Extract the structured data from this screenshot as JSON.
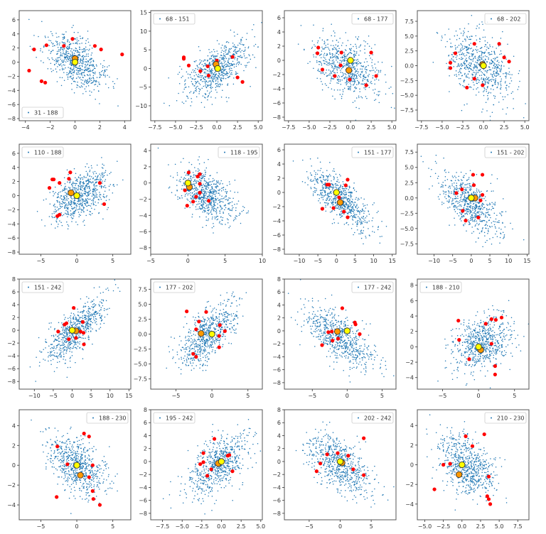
{
  "chart_data": [
    {
      "type": "scatter",
      "legend": "31 - 188",
      "legend_position": "lower-left",
      "xlim": [
        -4.5,
        4.5
      ],
      "ylim": [
        -8.3,
        7.3
      ],
      "xticks": [
        -4,
        -2,
        0,
        2,
        4
      ],
      "yticks": [
        -8,
        -6,
        -4,
        -2,
        0,
        2,
        4,
        6
      ],
      "cloud": {
        "center": [
          0,
          0
        ],
        "sd": [
          1.2,
          2.0
        ],
        "correlation": -0.5
      },
      "red_points": [
        [
          -3.3,
          1.8
        ],
        [
          -2.3,
          2.4
        ],
        [
          -0.9,
          2.3
        ],
        [
          -0.2,
          3.3
        ],
        [
          1.6,
          2.3
        ],
        [
          2.1,
          1.8
        ],
        [
          3.8,
          1.1
        ],
        [
          -3.7,
          -1.2
        ],
        [
          -2.7,
          -2.7
        ],
        [
          -2.4,
          -2.9
        ]
      ],
      "orange_point": [
        0,
        0.5
      ],
      "yellow_point": [
        0,
        0
      ]
    },
    {
      "type": "scatter",
      "legend": "68 - 151",
      "legend_position": "upper-left",
      "xlim": [
        -8,
        5.5
      ],
      "ylim": [
        -14,
        15.5
      ],
      "xticks": [
        -7.5,
        -5.0,
        -2.5,
        0.0,
        2.5,
        5.0
      ],
      "yticks": [
        -10,
        -5,
        0,
        5,
        10,
        15
      ],
      "cloud": {
        "center": [
          0,
          0
        ],
        "sd": [
          2.0,
          4.0
        ],
        "correlation": 0.6
      },
      "red_points": [
        [
          -4,
          3
        ],
        [
          -4,
          2.6
        ],
        [
          -3.4,
          0.8
        ],
        [
          -2,
          -0.7
        ],
        [
          -1.1,
          0.6
        ],
        [
          -1,
          -1.9
        ],
        [
          0,
          2.1
        ],
        [
          1.9,
          3.1
        ],
        [
          2.5,
          -2.4
        ],
        [
          3.1,
          -3.6
        ]
      ],
      "orange_point": [
        -0.1,
        1.1
      ],
      "yellow_point": [
        0.1,
        0
      ]
    },
    {
      "type": "scatter",
      "legend": "68 - 177",
      "legend_position": "upper-right",
      "xlim": [
        -8,
        5.5
      ],
      "ylim": [
        -8.5,
        7
      ],
      "xticks": [
        -7.5,
        -5.0,
        -2.5,
        0.0,
        2.5,
        5.0
      ],
      "yticks": [
        -8,
        -6,
        -4,
        -2,
        0,
        2,
        4,
        6
      ],
      "cloud": {
        "center": [
          -0.5,
          -1
        ],
        "sd": [
          2.0,
          2.2
        ],
        "correlation": -0.45
      },
      "red_points": [
        [
          -3.9,
          1.8
        ],
        [
          -4,
          1
        ],
        [
          -3.4,
          -1.3
        ],
        [
          -1.9,
          -2.2
        ],
        [
          -1.2,
          -0.7
        ],
        [
          -1.1,
          1.1
        ],
        [
          -0.1,
          -2.7
        ],
        [
          1.9,
          -3.5
        ],
        [
          2.5,
          1.1
        ],
        [
          3.1,
          -2.2
        ]
      ],
      "orange_point": [
        -0.2,
        -1.4
      ],
      "yellow_point": [
        0,
        0
      ]
    },
    {
      "type": "scatter",
      "legend": "68 - 202",
      "legend_position": "upper-right",
      "xlim": [
        -8,
        5.5
      ],
      "ylim": [
        -9.3,
        9.3
      ],
      "xticks": [
        -7.5,
        -5.0,
        -2.5,
        0.0,
        2.5,
        5.0
      ],
      "yticks": [
        -7.5,
        -5.0,
        -2.5,
        0.0,
        2.5,
        5.0,
        7.5
      ],
      "cloud": {
        "center": [
          -0.5,
          0
        ],
        "sd": [
          2.0,
          2.8
        ],
        "correlation": -0.4
      },
      "red_points": [
        [
          -3.4,
          2.1
        ],
        [
          -4,
          0.5
        ],
        [
          -4,
          -0.4
        ],
        [
          -2,
          -3.7
        ],
        [
          -1.1,
          3.7
        ],
        [
          -1.1,
          -2.2
        ],
        [
          -0.1,
          -3.3
        ],
        [
          1.9,
          3.7
        ],
        [
          2.5,
          1.4
        ],
        [
          3.1,
          0.7
        ]
      ],
      "orange_point": [
        -0.1,
        0.2
      ],
      "yellow_point": [
        0,
        0
      ]
    },
    {
      "type": "scatter",
      "legend": "110 - 188",
      "legend_position": "upper-left",
      "xlim": [
        -8,
        7.5
      ],
      "ylim": [
        -8.3,
        7.3
      ],
      "xticks": [
        -5,
        0,
        5
      ],
      "yticks": [
        -8,
        -6,
        -4,
        -2,
        0,
        2,
        4,
        6
      ],
      "cloud": {
        "center": [
          0.5,
          0
        ],
        "sd": [
          2.0,
          1.8
        ],
        "correlation": 0.45
      },
      "red_points": [
        [
          -3.8,
          1.1
        ],
        [
          -3.4,
          2.3
        ],
        [
          -3.2,
          2.3
        ],
        [
          -2.4,
          1.8
        ],
        [
          -1.1,
          2.4
        ],
        [
          -0.9,
          3.3
        ],
        [
          3.2,
          1.8
        ],
        [
          3.8,
          -1.2
        ],
        [
          -2.7,
          -2.9
        ],
        [
          -2.4,
          -2.7
        ]
      ],
      "orange_point": [
        -0.8,
        0.4
      ],
      "yellow_point": [
        0,
        0
      ]
    },
    {
      "type": "scatter",
      "legend": "118 - 195",
      "legend_position": "upper-right",
      "xlim": [
        -5,
        10
      ],
      "ylim": [
        -8.8,
        4.8
      ],
      "xticks": [
        -5,
        0,
        5,
        10
      ],
      "yticks": [
        -8,
        -6,
        -4,
        -2,
        0,
        2,
        4
      ],
      "cloud": {
        "center": [
          2.5,
          -1.5
        ],
        "sd": [
          2.0,
          1.6
        ],
        "correlation": -0.5
      },
      "red_points": [
        [
          0.1,
          1.3
        ],
        [
          1.3,
          0.8
        ],
        [
          1.6,
          1.1
        ],
        [
          1.6,
          -0.1
        ],
        [
          1.6,
          -1.2
        ],
        [
          1.1,
          -1.7
        ],
        [
          -0.4,
          -0.9
        ],
        [
          0.7,
          -2.3
        ],
        [
          2.8,
          -2.2
        ],
        [
          -0.1,
          -2.8
        ]
      ],
      "orange_point": [
        0.2,
        -0.5
      ],
      "yellow_point": [
        0,
        0
      ]
    },
    {
      "type": "scatter",
      "legend": "151 - 177",
      "legend_position": "upper-right",
      "xlim": [
        -14,
        16
      ],
      "ylim": [
        -8.7,
        6.8
      ],
      "xticks": [
        -10,
        -5,
        0,
        5,
        10,
        15
      ],
      "yticks": [
        -8,
        -6,
        -4,
        -2,
        0,
        2,
        4,
        6
      ],
      "cloud": {
        "center": [
          1,
          -1
        ],
        "sd": [
          4.0,
          2.0
        ],
        "correlation": -0.7
      },
      "red_points": [
        [
          -2.5,
          1.1
        ],
        [
          -2,
          1.1
        ],
        [
          2.5,
          1
        ],
        [
          3,
          1.8
        ],
        [
          0.7,
          -0.7
        ],
        [
          -3.8,
          -2.3
        ],
        [
          -0.8,
          -2.2
        ],
        [
          2,
          -2.7
        ],
        [
          3,
          -3.5
        ]
      ],
      "orange_point": [
        1,
        -1.4
      ],
      "yellow_point": [
        0,
        0
      ]
    },
    {
      "type": "scatter",
      "legend": "151 - 202",
      "legend_position": "upper-right",
      "xlim": [
        -14.5,
        15.5
      ],
      "ylim": [
        -9.2,
        8.8
      ],
      "xticks": [
        -10,
        -5,
        0,
        5,
        10,
        15
      ],
      "yticks": [
        -7.5,
        -5.0,
        -2.5,
        0.0,
        2.5,
        5.0,
        7.5
      ],
      "cloud": {
        "center": [
          0,
          -1
        ],
        "sd": [
          4.0,
          2.5
        ],
        "correlation": -0.6
      },
      "red_points": [
        [
          0.5,
          3.8
        ],
        [
          3,
          3.8
        ],
        [
          0.7,
          2.1
        ],
        [
          -2.5,
          1.4
        ],
        [
          -4,
          0.8
        ],
        [
          3,
          0.5
        ],
        [
          2.5,
          -0.4
        ],
        [
          -2.3,
          -2.1
        ],
        [
          1.9,
          -3.2
        ],
        [
          -1.5,
          -3.7
        ]
      ],
      "orange_point": [
        1,
        0
      ],
      "yellow_point": [
        0,
        0
      ]
    },
    {
      "type": "scatter",
      "legend": "151 - 242",
      "legend_position": "upper-left",
      "xlim": [
        -14,
        15.5
      ],
      "ylim": [
        -9.2,
        8
      ],
      "xticks": [
        -10,
        -5,
        0,
        5,
        10,
        15
      ],
      "yticks": [
        -8,
        -6,
        -4,
        -2,
        0,
        2,
        4,
        6,
        8
      ],
      "cloud": {
        "center": [
          1,
          0
        ],
        "sd": [
          4.0,
          2.5
        ],
        "correlation": 0.75
      },
      "red_points": [
        [
          0.4,
          3.5
        ],
        [
          -2,
          0.9
        ],
        [
          -1.5,
          1.1
        ],
        [
          2.8,
          1.3
        ],
        [
          -3.7,
          -0.2
        ],
        [
          2.2,
          -0.2
        ],
        [
          3,
          -0.4
        ],
        [
          -0.9,
          -1.4
        ],
        [
          1,
          -1.2
        ],
        [
          3.1,
          -2.2
        ]
      ],
      "orange_point": [
        1,
        -0.1
      ],
      "yellow_point": [
        0,
        0
      ]
    },
    {
      "type": "scatter",
      "legend": "177 - 202",
      "legend_position": "upper-left",
      "xlim": [
        -8.5,
        7
      ],
      "ylim": [
        -9.2,
        9.2
      ],
      "xticks": [
        -5,
        0,
        5
      ],
      "yticks": [
        -7.5,
        -5.0,
        -2.5,
        0.0,
        2.5,
        5.0,
        7.5
      ],
      "cloud": {
        "center": [
          -0.5,
          0
        ],
        "sd": [
          2.0,
          2.6
        ],
        "correlation": 0.6
      },
      "red_points": [
        [
          -3.5,
          3.8
        ],
        [
          -0.8,
          3.7
        ],
        [
          -1.8,
          2.1
        ],
        [
          -2.2,
          0.8
        ],
        [
          1.1,
          1.5
        ],
        [
          1.8,
          0.5
        ],
        [
          1,
          -0.3
        ],
        [
          1,
          -2.2
        ],
        [
          -2.6,
          -3.3
        ],
        [
          -2.2,
          -3.8
        ]
      ],
      "orange_point": [
        -1.5,
        0.1
      ],
      "yellow_point": [
        0,
        0
      ]
    },
    {
      "type": "scatter",
      "legend": "177 - 242",
      "legend_position": "upper-right",
      "xlim": [
        -9,
        7
      ],
      "ylim": [
        -9,
        8
      ],
      "xticks": [
        -5,
        0,
        5
      ],
      "yticks": [
        -8,
        -6,
        -4,
        -2,
        0,
        2,
        4,
        6,
        8
      ],
      "cloud": {
        "center": [
          -1,
          -1
        ],
        "sd": [
          2.5,
          2.4
        ],
        "correlation": -0.7
      },
      "red_points": [
        [
          -0.7,
          3.5
        ],
        [
          1.1,
          1.3
        ],
        [
          1.2,
          1
        ],
        [
          -2.7,
          -0.2
        ],
        [
          -2.2,
          -0.1
        ],
        [
          1.8,
          -0.5
        ],
        [
          -2.1,
          -1.5
        ],
        [
          -1.3,
          -1.2
        ],
        [
          -3.6,
          -2.2
        ]
      ],
      "orange_point": [
        -1.4,
        -0.1
      ],
      "yellow_point": [
        0,
        0
      ]
    },
    {
      "type": "scatter",
      "legend": "188 - 210",
      "legend_position": "upper-left",
      "xlim": [
        -8.5,
        7
      ],
      "ylim": [
        -5.5,
        8.8
      ],
      "xticks": [
        -5,
        0,
        5
      ],
      "yticks": [
        -4,
        -2,
        0,
        2,
        4,
        6,
        8
      ],
      "cloud": {
        "center": [
          0.5,
          0.5
        ],
        "sd": [
          2.0,
          1.8
        ],
        "correlation": 0.3
      },
      "red_points": [
        [
          -2.8,
          3.4
        ],
        [
          1,
          3
        ],
        [
          1.8,
          3.6
        ],
        [
          2.4,
          3.5
        ],
        [
          3.2,
          3.8
        ],
        [
          -2.7,
          0.9
        ],
        [
          1.8,
          0.4
        ],
        [
          -1.3,
          -1.6
        ],
        [
          2.3,
          -2.5
        ],
        [
          2.3,
          -3.6
        ]
      ],
      "orange_point": [
        0.3,
        -0.4
      ],
      "yellow_point": [
        0,
        0
      ]
    },
    {
      "type": "scatter",
      "legend": "188 - 230",
      "legend_position": "upper-right",
      "xlim": [
        -8,
        7.5
      ],
      "ylim": [
        -5.5,
        5.6
      ],
      "xticks": [
        -5,
        0,
        5
      ],
      "yticks": [
        -4,
        -2,
        0,
        2,
        4
      ],
      "cloud": {
        "center": [
          0,
          0
        ],
        "sd": [
          2.0,
          1.5
        ],
        "correlation": -0.45
      },
      "red_points": [
        [
          1,
          3.2
        ],
        [
          1.7,
          2.9
        ],
        [
          -2.7,
          1.9
        ],
        [
          -1.3,
          0.1
        ],
        [
          2.2,
          0
        ],
        [
          1.7,
          -1.2
        ],
        [
          2.2,
          -2.6
        ],
        [
          2.3,
          -3.4
        ],
        [
          -2.8,
          -3.2
        ],
        [
          3.2,
          -4
        ]
      ],
      "orange_point": [
        0.5,
        -1
      ],
      "yellow_point": [
        0,
        0
      ]
    },
    {
      "type": "scatter",
      "legend": "195 - 242",
      "legend_position": "upper-left",
      "xlim": [
        -9,
        5.2
      ],
      "ylim": [
        -9,
        8
      ],
      "xticks": [
        -7.5,
        -5.0,
        -2.5,
        0.0,
        2.5,
        5.0
      ],
      "yticks": [
        -8,
        -6,
        -4,
        -2,
        0,
        2,
        4,
        6,
        8
      ],
      "cloud": {
        "center": [
          -0.5,
          -0.5
        ],
        "sd": [
          2.0,
          2.4
        ],
        "correlation": 0.55
      },
      "red_points": [
        [
          -0.9,
          3.5
        ],
        [
          -2.3,
          1.3
        ],
        [
          -2.7,
          -0.4
        ],
        [
          -2.3,
          -0.1
        ],
        [
          0.8,
          0.9
        ],
        [
          1,
          1
        ],
        [
          -1.3,
          -1.2
        ],
        [
          -1.8,
          -2.2
        ],
        [
          1.4,
          -1.5
        ]
      ],
      "orange_point": [
        -0.4,
        -0.3
      ],
      "yellow_point": [
        0,
        0
      ]
    },
    {
      "type": "scatter",
      "legend": "202 - 242",
      "legend_position": "upper-right",
      "xlim": [
        -9,
        9
      ],
      "ylim": [
        -9,
        8
      ],
      "xticks": [
        -5,
        0,
        5
      ],
      "yticks": [
        -8,
        -6,
        -4,
        -2,
        0,
        2,
        4,
        6,
        8
      ],
      "cloud": {
        "center": [
          0,
          -0.5
        ],
        "sd": [
          2.5,
          2.4
        ],
        "correlation": -0.55
      },
      "red_points": [
        [
          -2.1,
          1.1
        ],
        [
          -0.4,
          1.3
        ],
        [
          1.3,
          0.9
        ],
        [
          3.8,
          3.6
        ],
        [
          -3.2,
          -0.3
        ],
        [
          0.5,
          -0.1
        ],
        [
          -3.8,
          -1.5
        ],
        [
          2.1,
          -1.2
        ],
        [
          3.8,
          -2.1
        ]
      ],
      "orange_point": [
        0.3,
        -0.2
      ],
      "yellow_point": [
        0,
        0
      ]
    },
    {
      "type": "scatter",
      "legend": "210 - 230",
      "legend_position": "upper-right",
      "xlim": [
        -6,
        9
      ],
      "ylim": [
        -5.6,
        5.6
      ],
      "xticks": [
        -5.0,
        -2.5,
        0.0,
        2.5,
        5.0,
        7.5
      ],
      "yticks": [
        -4,
        -2,
        0,
        2,
        4
      ],
      "cloud": {
        "center": [
          0.5,
          0
        ],
        "sd": [
          2.0,
          1.6
        ],
        "correlation": -0.45
      },
      "red_points": [
        [
          0.5,
          2.9
        ],
        [
          3,
          3.1
        ],
        [
          1.4,
          1.9
        ],
        [
          -2.5,
          0
        ],
        [
          -1.6,
          0.1
        ],
        [
          3.6,
          -1.2
        ],
        [
          -3.7,
          -2.5
        ],
        [
          3.4,
          -3.2
        ],
        [
          3.6,
          -3.5
        ],
        [
          3.8,
          -4
        ]
      ],
      "orange_point": [
        -0.4,
        -1
      ],
      "yellow_point": [
        0,
        0
      ]
    }
  ],
  "colors": {
    "cloud": "#1f77b4",
    "red": "#ff0000",
    "orange": "#ff9900",
    "yellow": "#ffff00",
    "edge": "#333333"
  }
}
